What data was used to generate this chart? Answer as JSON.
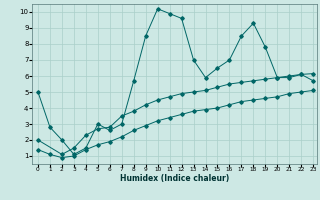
{
  "xlabel": "Humidex (Indice chaleur)",
  "bg_color": "#cde8e4",
  "grid_color": "#aacfc9",
  "line_color": "#006666",
  "xlim": [
    -0.5,
    23.3
  ],
  "ylim": [
    0.5,
    10.5
  ],
  "xticks": [
    0,
    1,
    2,
    3,
    4,
    5,
    6,
    7,
    8,
    9,
    10,
    11,
    12,
    13,
    14,
    15,
    16,
    17,
    18,
    19,
    20,
    21,
    22,
    23
  ],
  "yticks": [
    1,
    2,
    3,
    4,
    5,
    6,
    7,
    8,
    9,
    10
  ],
  "series1_x": [
    0,
    1,
    2,
    3,
    4,
    5,
    6,
    7,
    8,
    9,
    10,
    11,
    12,
    13,
    14,
    15,
    16,
    17,
    18,
    19,
    20,
    21,
    22,
    23
  ],
  "series1_y": [
    5.0,
    2.8,
    2.0,
    1.1,
    1.5,
    3.0,
    2.6,
    3.0,
    5.7,
    8.5,
    10.2,
    9.9,
    9.6,
    7.0,
    5.9,
    6.5,
    7.0,
    8.5,
    9.3,
    7.8,
    5.9,
    5.9,
    6.1,
    5.7
  ],
  "series2_x": [
    0,
    2,
    3,
    4,
    5,
    6,
    7,
    8,
    9,
    10,
    11,
    12,
    13,
    14,
    15,
    16,
    17,
    18,
    19,
    20,
    21,
    22,
    23
  ],
  "series2_y": [
    2.0,
    1.1,
    1.5,
    2.3,
    2.7,
    2.8,
    3.5,
    3.8,
    4.2,
    4.5,
    4.7,
    4.9,
    5.0,
    5.1,
    5.3,
    5.5,
    5.6,
    5.7,
    5.8,
    5.9,
    6.0,
    6.1,
    6.15
  ],
  "series3_x": [
    0,
    1,
    2,
    3,
    4,
    5,
    6,
    7,
    8,
    9,
    10,
    11,
    12,
    13,
    14,
    15,
    16,
    17,
    18,
    19,
    20,
    21,
    22,
    23
  ],
  "series3_y": [
    1.4,
    1.1,
    0.9,
    1.0,
    1.4,
    1.7,
    1.9,
    2.2,
    2.6,
    2.9,
    3.2,
    3.4,
    3.6,
    3.8,
    3.9,
    4.0,
    4.2,
    4.4,
    4.5,
    4.6,
    4.7,
    4.9,
    5.0,
    5.1
  ]
}
